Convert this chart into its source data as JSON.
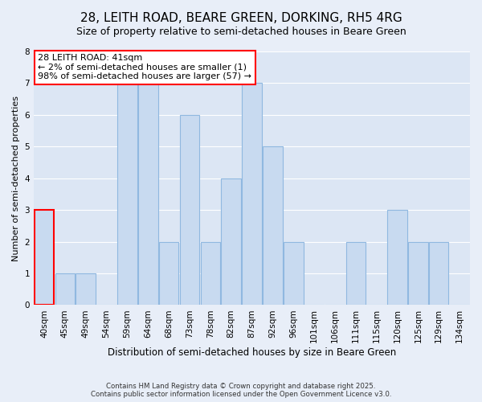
{
  "title": "28, LEITH ROAD, BEARE GREEN, DORKING, RH5 4RG",
  "subtitle": "Size of property relative to semi-detached houses in Beare Green",
  "xlabel": "Distribution of semi-detached houses by size in Beare Green",
  "ylabel": "Number of semi-detached properties",
  "categories": [
    "40sqm",
    "45sqm",
    "49sqm",
    "54sqm",
    "59sqm",
    "64sqm",
    "68sqm",
    "73sqm",
    "78sqm",
    "82sqm",
    "87sqm",
    "92sqm",
    "96sqm",
    "101sqm",
    "106sqm",
    "111sqm",
    "115sqm",
    "120sqm",
    "125sqm",
    "129sqm",
    "134sqm"
  ],
  "values": [
    3,
    1,
    1,
    0,
    7,
    7,
    2,
    6,
    2,
    4,
    7,
    5,
    2,
    0,
    0,
    2,
    0,
    3,
    2,
    2,
    0
  ],
  "bar_color": "#c8daf0",
  "bar_edge_color": "#90b8e0",
  "highlight_bar_index": 0,
  "highlight_edge_color": "red",
  "annotation_title": "28 LEITH ROAD: 41sqm",
  "annotation_line1": "← 2% of semi-detached houses are smaller (1)",
  "annotation_line2": "98% of semi-detached houses are larger (57) →",
  "annotation_box_edge_color": "red",
  "ylim": [
    0,
    8
  ],
  "yticks": [
    0,
    1,
    2,
    3,
    4,
    5,
    6,
    7,
    8
  ],
  "bg_color": "#e8eef8",
  "plot_bg_color": "#dce6f4",
  "footer_line1": "Contains HM Land Registry data © Crown copyright and database right 2025.",
  "footer_line2": "Contains public sector information licensed under the Open Government Licence v3.0.",
  "title_fontsize": 11,
  "subtitle_fontsize": 9,
  "annotation_fontsize": 8,
  "tick_fontsize": 7.5,
  "grid_color": "#ffffff"
}
